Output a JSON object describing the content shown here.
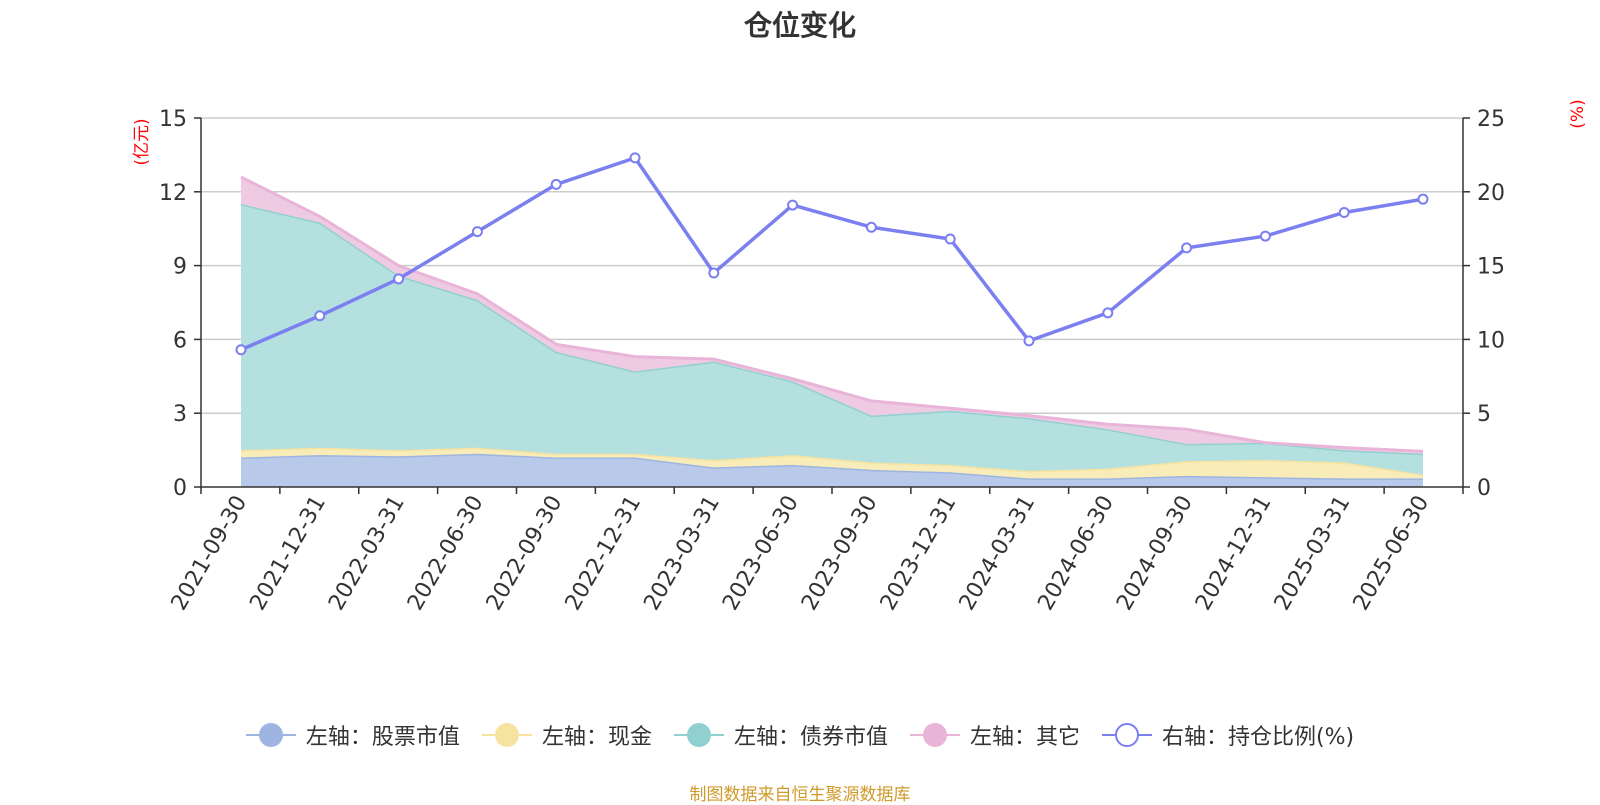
{
  "chart_data": {
    "type": "area",
    "title": "仓位变化",
    "source_text": "制图数据来自恒生聚源数据库",
    "left_axis": {
      "unit_label": "(亿元)",
      "ylim": [
        0,
        15
      ],
      "ticks": [
        "0",
        "3",
        "6",
        "9",
        "12",
        "15"
      ]
    },
    "right_axis": {
      "unit_label": "(%)",
      "ylim": [
        0,
        25
      ],
      "ticks": [
        "0",
        "5",
        "10",
        "15",
        "20",
        "25"
      ]
    },
    "grid": true,
    "legend_position": "bottom",
    "categories": [
      "2021-09-30",
      "2021-12-31",
      "2022-03-31",
      "2022-06-30",
      "2022-09-30",
      "2022-12-31",
      "2023-03-31",
      "2023-06-30",
      "2023-09-30",
      "2023-12-31",
      "2024-03-31",
      "2024-06-30",
      "2024-09-30",
      "2024-12-31",
      "2025-03-31",
      "2025-06-30"
    ],
    "series": [
      {
        "name": "左轴：股票市值",
        "axis": "left",
        "stack": true,
        "color": "#9db5e0",
        "fill": "#b8c9ea",
        "values": [
          1.2,
          1.3,
          1.25,
          1.35,
          1.2,
          1.2,
          0.8,
          0.9,
          0.7,
          0.6,
          0.35,
          0.35,
          0.45,
          0.4,
          0.35,
          0.35
        ]
      },
      {
        "name": "左轴：现金",
        "axis": "left",
        "stack": true,
        "color": "#f6e3a0",
        "fill": "#f8ecb8",
        "values": [
          0.3,
          0.3,
          0.25,
          0.25,
          0.15,
          0.15,
          0.3,
          0.4,
          0.3,
          0.3,
          0.3,
          0.4,
          0.6,
          0.7,
          0.65,
          0.15
        ]
      },
      {
        "name": "左轴：债券市值",
        "axis": "left",
        "stack": true,
        "color": "#91d0d0",
        "fill": "#b5e0e0",
        "values": [
          10.0,
          9.15,
          7.1,
          6.0,
          4.15,
          3.35,
          4.0,
          3.0,
          1.9,
          2.2,
          2.15,
          1.6,
          0.7,
          0.7,
          0.5,
          0.85
        ]
      },
      {
        "name": "左轴：其它",
        "axis": "left",
        "stack": true,
        "color": "#e8b4d8",
        "fill": "#efcbe3",
        "values": [
          1.1,
          0.25,
          0.4,
          0.25,
          0.3,
          0.6,
          0.1,
          0.1,
          0.6,
          0.1,
          0.1,
          0.2,
          0.6,
          0.0,
          0.1,
          0.1
        ]
      },
      {
        "name": "右轴：持仓比例(%)",
        "axis": "right",
        "type": "line",
        "color": "#7b7ff0",
        "values": [
          9.3,
          11.6,
          14.1,
          17.3,
          20.5,
          22.3,
          14.5,
          19.1,
          17.6,
          16.8,
          9.9,
          11.8,
          16.2,
          17.0,
          18.6,
          19.5
        ]
      }
    ]
  }
}
